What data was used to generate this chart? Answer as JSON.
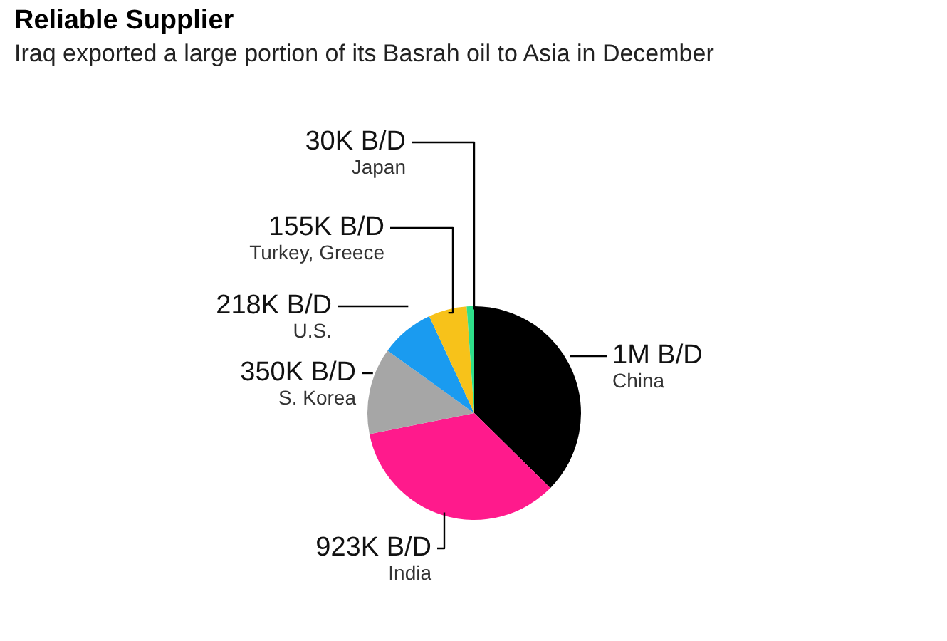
{
  "chart_data": {
    "type": "pie",
    "title": "Reliable Supplier",
    "subtitle": "Iraq exported a large portion of its Basrah oil to Asia in December",
    "categories": [
      "China",
      "India",
      "S. Korea",
      "U.S.",
      "Turkey, Greece",
      "Japan"
    ],
    "values": [
      1000000,
      923000,
      350000,
      218000,
      155000,
      30000
    ],
    "value_labels": [
      "1M B/D",
      "923K B/D",
      "350K B/D",
      "218K B/D",
      "155K B/D",
      "30K B/D"
    ],
    "colors": [
      "#000000",
      "#ff1a8c",
      "#a6a6a6",
      "#1a9bf0",
      "#f7c21a",
      "#2ee08a"
    ]
  }
}
